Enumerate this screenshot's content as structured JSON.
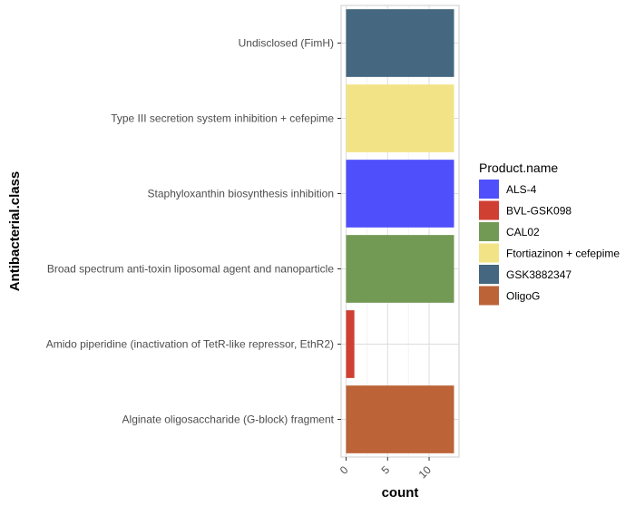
{
  "chart_data": {
    "type": "bar",
    "orientation": "horizontal",
    "xlabel": "count",
    "ylabel": "Antibacterial.class",
    "xlim": [
      -0.6,
      13.6
    ],
    "xticks": [
      0,
      5,
      10
    ],
    "x_tick_labels": [
      "0",
      "5",
      "10"
    ],
    "categories": [
      "Undisclosed (FimH)",
      "Type III secretion system inhibition + cefepime",
      "Staphyloxanthin biosynthesis inhibition",
      "Broad spectrum anti-toxin liposomal agent and nanoparticle",
      "Amido piperidine (inactivation of TetR-like repressor, EthR2)",
      "Alginate oligosaccharide (G-block) fragment"
    ],
    "values": [
      13,
      13,
      13,
      13,
      1,
      13
    ],
    "bar_products": [
      "GSK3882347",
      "Ftortiazinon + cefepime",
      "ALS-4",
      "CAL02",
      "BVL-GSK098",
      "OligoG"
    ],
    "grid": true,
    "legend": {
      "title": "Product.name",
      "position": "right",
      "entries": [
        {
          "name": "ALS-4",
          "color": "#4f4ffb"
        },
        {
          "name": "BVL-GSK098",
          "color": "#cf3f32"
        },
        {
          "name": "CAL02",
          "color": "#739a55"
        },
        {
          "name": "Ftortiazinon + cefepime",
          "color": "#f2e486"
        },
        {
          "name": "GSK3882347",
          "color": "#45677f"
        },
        {
          "name": "OligoG",
          "color": "#bc6338"
        }
      ]
    }
  }
}
